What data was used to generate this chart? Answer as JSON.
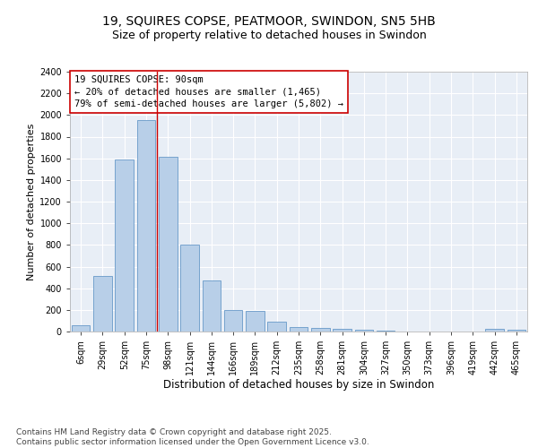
{
  "title_line1": "19, SQUIRES COPSE, PEATMOOR, SWINDON, SN5 5HB",
  "title_line2": "Size of property relative to detached houses in Swindon",
  "xlabel": "Distribution of detached houses by size in Swindon",
  "ylabel": "Number of detached properties",
  "bar_color": "#b8cfe8",
  "bar_edge_color": "#6899c8",
  "background_color": "#e8eef6",
  "grid_color": "#ffffff",
  "categories": [
    "6sqm",
    "29sqm",
    "52sqm",
    "75sqm",
    "98sqm",
    "121sqm",
    "144sqm",
    "166sqm",
    "189sqm",
    "212sqm",
    "235sqm",
    "258sqm",
    "281sqm",
    "304sqm",
    "327sqm",
    "350sqm",
    "373sqm",
    "396sqm",
    "419sqm",
    "442sqm",
    "465sqm"
  ],
  "values": [
    55,
    510,
    1590,
    1950,
    1610,
    800,
    475,
    200,
    190,
    90,
    40,
    35,
    25,
    15,
    5,
    0,
    0,
    0,
    0,
    25,
    20
  ],
  "ylim": [
    0,
    2400
  ],
  "yticks": [
    0,
    200,
    400,
    600,
    800,
    1000,
    1200,
    1400,
    1600,
    1800,
    2000,
    2200,
    2400
  ],
  "vline_x": 3.5,
  "vline_color": "#cc0000",
  "annotation_text": "19 SQUIRES COPSE: 90sqm\n← 20% of detached houses are smaller (1,465)\n79% of semi-detached houses are larger (5,802) →",
  "annotation_box_color": "#ffffff",
  "annotation_box_edge": "#cc0000",
  "footer_text": "Contains HM Land Registry data © Crown copyright and database right 2025.\nContains public sector information licensed under the Open Government Licence v3.0.",
  "title_fontsize": 10,
  "subtitle_fontsize": 9,
  "tick_fontsize": 7,
  "xlabel_fontsize": 8.5,
  "ylabel_fontsize": 8,
  "annotation_fontsize": 7.5,
  "footer_fontsize": 6.5
}
